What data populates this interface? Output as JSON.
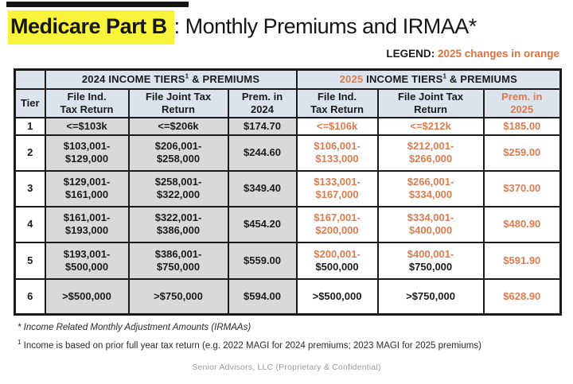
{
  "title": {
    "highlight": "Medicare Part B",
    "rest": ": Monthly Premiums and IRMAA*"
  },
  "legend": {
    "label": "LEGEND",
    "colon": ": ",
    "text": "2025 changes in orange"
  },
  "colors": {
    "legend_orange": "#E2703A",
    "table_orange": "#DF7B4D",
    "header_bg": "#DCE3ED",
    "gray_2024_bg": "#D9D9D9",
    "highlight_yellow": "#FAF33C"
  },
  "table": {
    "group_headers": [
      {
        "year": "2024",
        "rest": " INCOME TIERS",
        "sup": "1",
        "tail": " & PREMIUMS",
        "year_orange": false
      },
      {
        "year": "2025",
        "rest": " INCOME TIERS",
        "sup": "1",
        "tail": " & PREMIUMS",
        "year_orange": true
      }
    ],
    "columns": [
      {
        "lines": [
          "Tier"
        ],
        "orange": false
      },
      {
        "lines": [
          "File Ind.",
          "Tax Return"
        ],
        "orange": false
      },
      {
        "lines": [
          "File Joint Tax",
          "Return"
        ],
        "orange": false
      },
      {
        "lines": [
          "Prem. in",
          "2024"
        ],
        "orange": false
      },
      {
        "lines": [
          "File Ind.",
          "Tax Return"
        ],
        "orange": false
      },
      {
        "lines": [
          "File Joint Tax",
          "Return"
        ],
        "orange": false
      },
      {
        "lines": [
          "Prem. in",
          "2025"
        ],
        "orange": true
      }
    ],
    "rows": [
      {
        "tier": "1",
        "cells": [
          [
            [
              "<=$103k",
              0
            ]
          ],
          [
            [
              "<=$206k",
              0
            ]
          ],
          [
            [
              "$174.70",
              0
            ]
          ],
          [
            [
              "<=$106k",
              1
            ]
          ],
          [
            [
              "<=$212k",
              1
            ]
          ],
          [
            [
              "$185.00",
              1
            ]
          ]
        ]
      },
      {
        "tier": "2",
        "cells": [
          [
            [
              "$103,001-",
              0
            ],
            [
              "$129,000",
              0
            ]
          ],
          [
            [
              "$206,001-",
              0
            ],
            [
              "$258,000",
              0
            ]
          ],
          [
            [
              "$244.60",
              0
            ]
          ],
          [
            [
              "$106,001-",
              1
            ],
            [
              "$133,000",
              1
            ]
          ],
          [
            [
              "$212,001-",
              1
            ],
            [
              "$266,000",
              1
            ]
          ],
          [
            [
              "$259.00",
              1
            ]
          ]
        ]
      },
      {
        "tier": "3",
        "cells": [
          [
            [
              "$129,001-",
              0
            ],
            [
              "$161,000",
              0
            ]
          ],
          [
            [
              "$258,001-",
              0
            ],
            [
              "$322,000",
              0
            ]
          ],
          [
            [
              "$349.40",
              0
            ]
          ],
          [
            [
              "$133,001-",
              1
            ],
            [
              "$167,000",
              1
            ]
          ],
          [
            [
              "$266,001-",
              1
            ],
            [
              "$334,000",
              1
            ]
          ],
          [
            [
              "$370.00",
              1
            ]
          ]
        ]
      },
      {
        "tier": "4",
        "cells": [
          [
            [
              "$161,001-",
              0
            ],
            [
              "$193,000",
              0
            ]
          ],
          [
            [
              "$322,001-",
              0
            ],
            [
              "$386,000",
              0
            ]
          ],
          [
            [
              "$454.20",
              0
            ]
          ],
          [
            [
              "$167,001-",
              1
            ],
            [
              "$200,000",
              1
            ]
          ],
          [
            [
              "$334,001-",
              1
            ],
            [
              "$400,000",
              1
            ]
          ],
          [
            [
              "$480.90",
              1
            ]
          ]
        ]
      },
      {
        "tier": "5",
        "cells": [
          [
            [
              "$193,001-",
              0
            ],
            [
              "$500,000",
              0
            ]
          ],
          [
            [
              "$386,001-",
              0
            ],
            [
              "$750,000",
              0
            ]
          ],
          [
            [
              "$559.00",
              0
            ]
          ],
          [
            [
              "$200,001-",
              1
            ],
            [
              "$500,000",
              0
            ]
          ],
          [
            [
              "$400,001-",
              1
            ],
            [
              "$750,000",
              0
            ]
          ],
          [
            [
              "$591.90",
              1
            ]
          ]
        ]
      },
      {
        "tier": "6",
        "cells": [
          [
            [
              ">$500,000",
              0
            ]
          ],
          [
            [
              ">$750,000",
              0
            ]
          ],
          [
            [
              "$594.00",
              0
            ]
          ],
          [
            [
              ">$500,000",
              0
            ]
          ],
          [
            [
              ">$750,000",
              0
            ]
          ],
          [
            [
              "$628.90",
              1
            ]
          ]
        ]
      }
    ]
  },
  "footnotes": [
    {
      "marker": "*",
      "text": " Income Related Monthly Adjustment Amounts (IRMAAs)"
    },
    {
      "marker": "1",
      "text": " Income is based on prior full year tax return (e.g. 2022 MAGI for 2024 premiums; 2023 MAGI for 2025 premiums)"
    }
  ],
  "footer": "Senior Advisors, LLC (Proprietary & Confidential)"
}
